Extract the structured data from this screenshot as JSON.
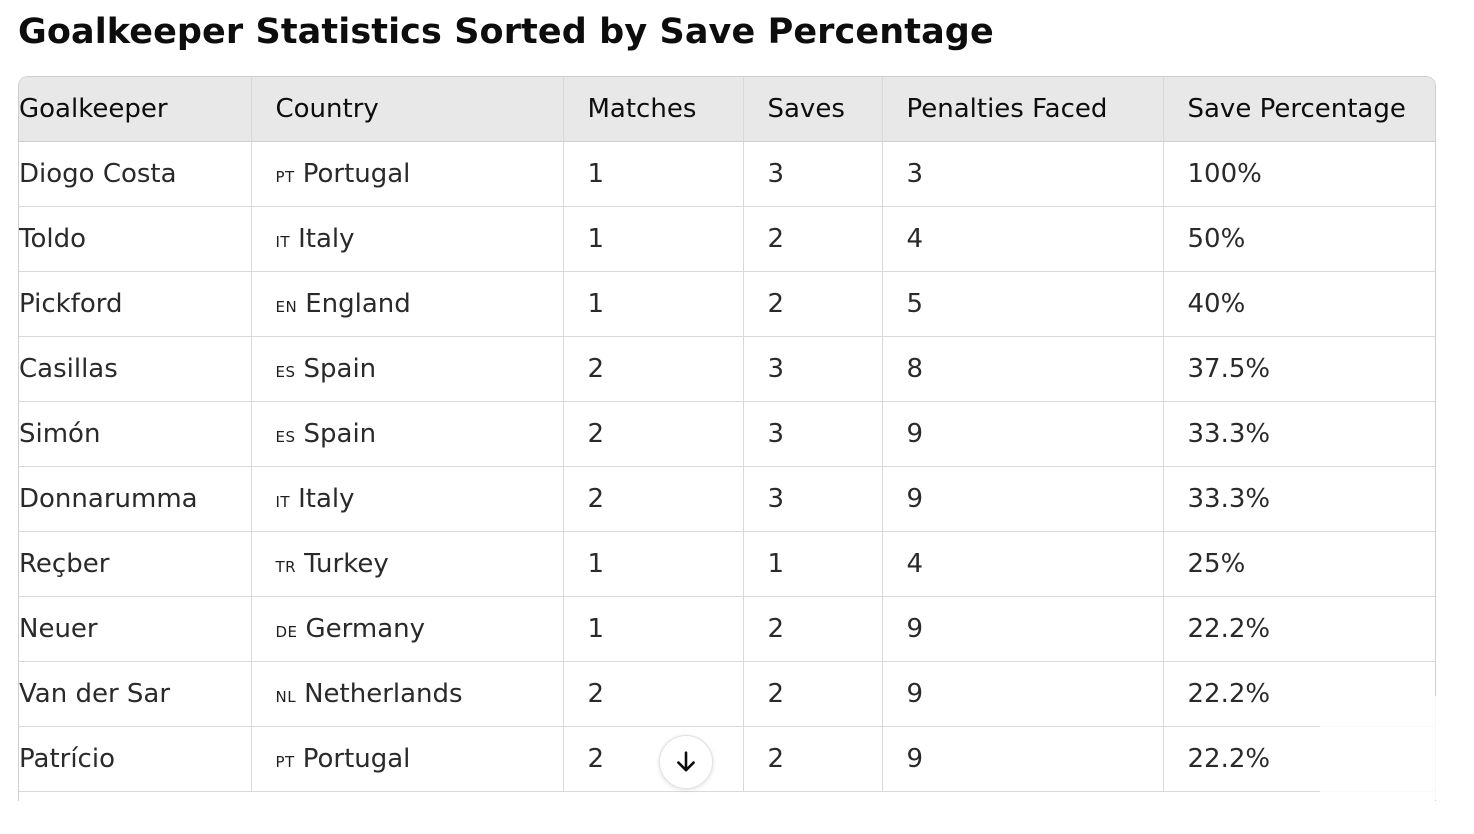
{
  "title": "Goalkeeper Statistics Sorted by Save Percentage",
  "table": {
    "headers": [
      "Goalkeeper",
      "Country",
      "Matches",
      "Saves",
      "Penalties Faced",
      "Save Percentage"
    ],
    "rows": [
      {
        "goalkeeper": "Diogo Costa",
        "code": "PT",
        "country": "Portugal",
        "matches": "1",
        "saves": "3",
        "penalties_faced": "3",
        "save_percentage": "100%"
      },
      {
        "goalkeeper": "Toldo",
        "code": "IT",
        "country": "Italy",
        "matches": "1",
        "saves": "2",
        "penalties_faced": "4",
        "save_percentage": "50%"
      },
      {
        "goalkeeper": "Pickford",
        "code": "EN",
        "country": "England",
        "matches": "1",
        "saves": "2",
        "penalties_faced": "5",
        "save_percentage": "40%"
      },
      {
        "goalkeeper": "Casillas",
        "code": "ES",
        "country": "Spain",
        "matches": "2",
        "saves": "3",
        "penalties_faced": "8",
        "save_percentage": "37.5%"
      },
      {
        "goalkeeper": "Simón",
        "code": "ES",
        "country": "Spain",
        "matches": "2",
        "saves": "3",
        "penalties_faced": "9",
        "save_percentage": "33.3%"
      },
      {
        "goalkeeper": "Donnarumma",
        "code": "IT",
        "country": "Italy",
        "matches": "2",
        "saves": "3",
        "penalties_faced": "9",
        "save_percentage": "33.3%"
      },
      {
        "goalkeeper": "Reçber",
        "code": "TR",
        "country": "Turkey",
        "matches": "1",
        "saves": "1",
        "penalties_faced": "4",
        "save_percentage": "25%"
      },
      {
        "goalkeeper": "Neuer",
        "code": "DE",
        "country": "Germany",
        "matches": "1",
        "saves": "2",
        "penalties_faced": "9",
        "save_percentage": "22.2%"
      },
      {
        "goalkeeper": "Van der Sar",
        "code": "NL",
        "country": "Netherlands",
        "matches": "2",
        "saves": "2",
        "penalties_faced": "9",
        "save_percentage": "22.2%"
      },
      {
        "goalkeeper": "Patrício",
        "code": "PT",
        "country": "Portugal",
        "matches": "2",
        "saves": "2",
        "penalties_faced": "9",
        "save_percentage": "22.2%"
      }
    ]
  },
  "scroll_button": {
    "icon": "arrow-down-icon"
  }
}
